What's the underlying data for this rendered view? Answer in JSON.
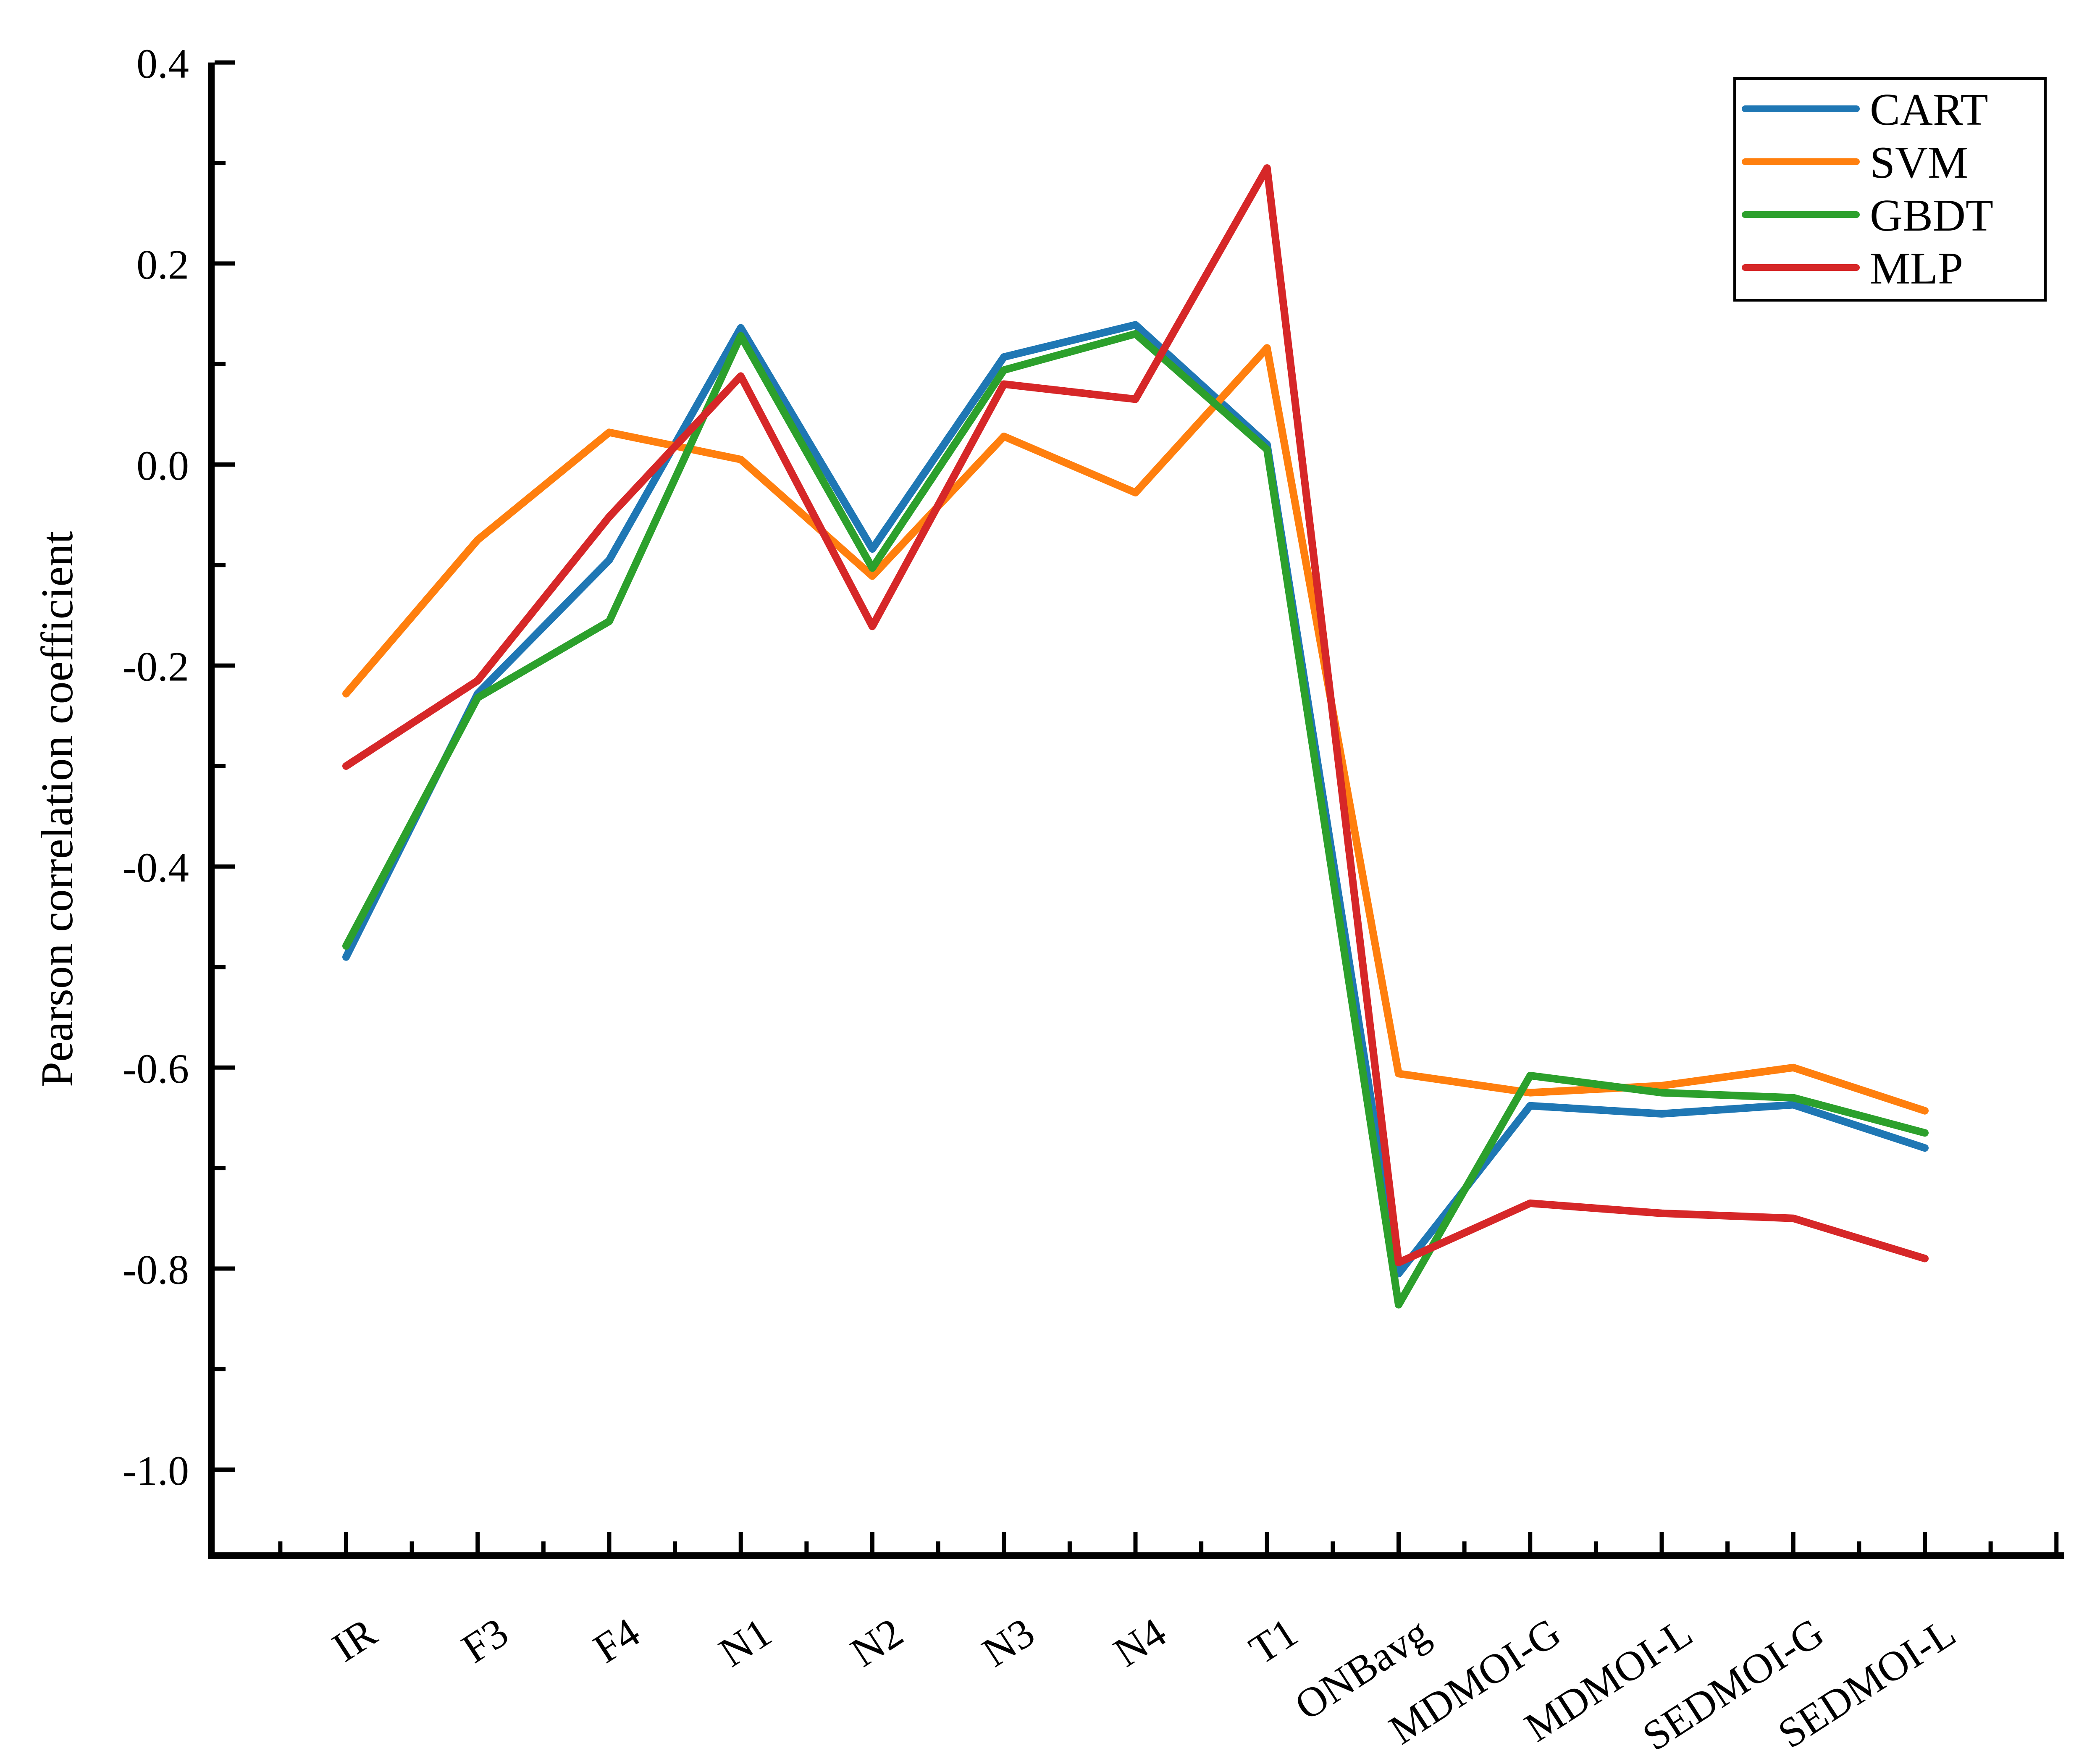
{
  "chart_data": {
    "type": "line",
    "title": "",
    "xlabel": "",
    "ylabel": "Pearson correlation coefficient",
    "categories": [
      "IR",
      "F3",
      "F4",
      "N1",
      "N2",
      "N3",
      "N4",
      "T1",
      "ONBavg",
      "MDMOI-G",
      "MDMOI-L",
      "SEDMOI-G",
      "SEDMOI-L"
    ],
    "series": [
      {
        "name": "CART",
        "color": "#1f77b4",
        "values": [
          -0.49,
          -0.228,
          -0.095,
          0.136,
          -0.084,
          0.107,
          0.139,
          0.02,
          -0.805,
          -0.638,
          -0.646,
          -0.637,
          -0.68
        ]
      },
      {
        "name": "SVM",
        "color": "#ff7f0e",
        "values": [
          -0.228,
          -0.075,
          0.032,
          0.005,
          -0.111,
          0.028,
          -0.028,
          0.116,
          -0.606,
          -0.625,
          -0.618,
          -0.6,
          -0.643
        ]
      },
      {
        "name": "GBDT",
        "color": "#2ca02c",
        "values": [
          -0.479,
          -0.232,
          -0.156,
          0.128,
          -0.103,
          0.094,
          0.13,
          0.015,
          -0.836,
          -0.608,
          -0.625,
          -0.63,
          -0.665
        ]
      },
      {
        "name": "MLP",
        "color": "#d62728",
        "values": [
          -0.3,
          -0.215,
          -0.052,
          0.088,
          -0.161,
          0.08,
          0.065,
          0.295,
          -0.794,
          -0.735,
          -0.745,
          -0.75,
          -0.79
        ]
      }
    ],
    "ylim": [
      -1.086,
      0.4
    ],
    "yticks": [
      0.4,
      0.2,
      0.0,
      -0.2,
      -0.4,
      -0.6,
      -0.8,
      -1.0
    ],
    "ytick_labels": [
      "0.4",
      "0.2",
      "0.0",
      "-0.2",
      "-0.4",
      "-0.6",
      "-0.8",
      "-1.0"
    ],
    "y_minor_ticks": [
      0.3,
      0.1,
      -0.1,
      -0.3,
      -0.5,
      -0.7,
      -0.9
    ],
    "grid": false,
    "legend_position": "upper right",
    "legend_entries": [
      "CART",
      "SVM",
      "GBDT",
      "MLP"
    ]
  }
}
